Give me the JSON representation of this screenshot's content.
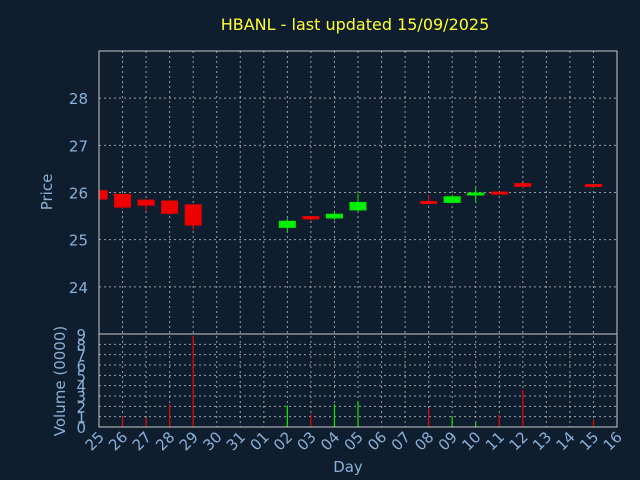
{
  "colors": {
    "background": "#0f1e2e",
    "title": "#ffff33",
    "axis_text": "#8ab0d8",
    "axis_label": "#8ab0d8",
    "frame": "#c8c8c8",
    "grid": "#c8c8c8",
    "up": "#00ee00",
    "down": "#ee0000"
  },
  "chart_data": [
    {
      "type": "candlestick",
      "title": "HBANL - last updated 15/09/2025",
      "ylabel": "Price",
      "ylim": [
        23,
        29
      ],
      "yticks": [
        24,
        25,
        26,
        27,
        28
      ],
      "grid": true,
      "x_days": [
        "25",
        "26",
        "27",
        "28",
        "29",
        "30",
        "31",
        "01",
        "02",
        "03",
        "04",
        "05",
        "06",
        "07",
        "08",
        "09",
        "10",
        "11",
        "12",
        "13",
        "14",
        "15",
        "16"
      ],
      "candles": [
        {
          "day": "25",
          "open": 26.05,
          "high": 26.1,
          "low": 25.85,
          "close": 25.85
        },
        {
          "day": "26",
          "open": 25.97,
          "high": 25.98,
          "low": 25.65,
          "close": 25.68
        },
        {
          "day": "27",
          "open": 25.85,
          "high": 25.85,
          "low": 25.6,
          "close": 25.72
        },
        {
          "day": "28",
          "open": 25.83,
          "high": 25.83,
          "low": 25.53,
          "close": 25.55
        },
        {
          "day": "29",
          "open": 25.75,
          "high": 25.75,
          "low": 25.2,
          "close": 25.3
        },
        {
          "day": "02",
          "open": 25.25,
          "high": 25.45,
          "low": 25.17,
          "close": 25.4
        },
        {
          "day": "03",
          "open": 25.5,
          "high": 25.5,
          "low": 25.4,
          "close": 25.43
        },
        {
          "day": "04",
          "open": 25.45,
          "high": 25.6,
          "low": 25.42,
          "close": 25.55
        },
        {
          "day": "05",
          "open": 25.62,
          "high": 25.98,
          "low": 25.6,
          "close": 25.8
        },
        {
          "day": "08",
          "open": 25.82,
          "high": 25.95,
          "low": 25.75,
          "close": 25.8
        },
        {
          "day": "09",
          "open": 25.78,
          "high": 25.95,
          "low": 25.77,
          "close": 25.92
        },
        {
          "day": "10",
          "open": 25.98,
          "high": 26.1,
          "low": 25.78,
          "close": 26.0
        },
        {
          "day": "11",
          "open": 26.02,
          "high": 26.02,
          "low": 25.97,
          "close": 26.0
        },
        {
          "day": "12",
          "open": 26.2,
          "high": 26.2,
          "low": 26.1,
          "close": 26.12
        },
        {
          "day": "15",
          "open": 26.18,
          "high": 26.18,
          "low": 26.1,
          "close": 26.12
        }
      ]
    },
    {
      "type": "bar",
      "ylabel": "Volume (0000)",
      "xlabel": "Day",
      "ylim": [
        0,
        9
      ],
      "yticks": [
        0,
        1,
        2,
        3,
        4,
        5,
        6,
        7,
        8,
        9
      ],
      "grid": true,
      "bars": [
        {
          "day": "26",
          "value": 1.0,
          "direction": "down"
        },
        {
          "day": "27",
          "value": 0.9,
          "direction": "down"
        },
        {
          "day": "28",
          "value": 2.2,
          "direction": "down"
        },
        {
          "day": "29",
          "value": 8.8,
          "direction": "down"
        },
        {
          "day": "02",
          "value": 2.1,
          "direction": "up"
        },
        {
          "day": "03",
          "value": 1.2,
          "direction": "down"
        },
        {
          "day": "04",
          "value": 2.2,
          "direction": "up"
        },
        {
          "day": "05",
          "value": 2.5,
          "direction": "up"
        },
        {
          "day": "08",
          "value": 1.8,
          "direction": "down"
        },
        {
          "day": "09",
          "value": 1.0,
          "direction": "up"
        },
        {
          "day": "10",
          "value": 0.4,
          "direction": "up"
        },
        {
          "day": "11",
          "value": 1.2,
          "direction": "down"
        },
        {
          "day": "12",
          "value": 3.6,
          "direction": "down"
        },
        {
          "day": "15",
          "value": 0.7,
          "direction": "down"
        }
      ]
    }
  ]
}
